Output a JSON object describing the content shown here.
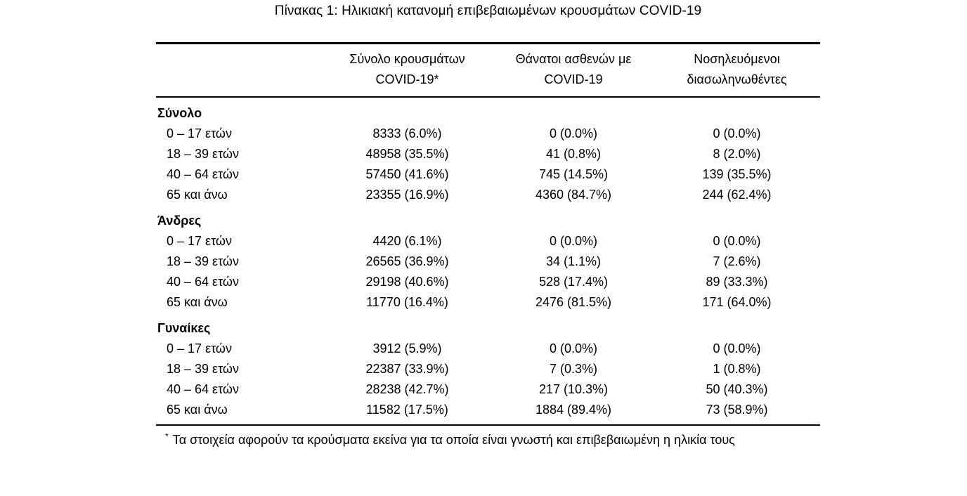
{
  "page": {
    "title": "Πίνακας 1: Ηλικιακή κατανομή επιβεβαιωμένων κρουσμάτων COVID-19"
  },
  "table": {
    "columns": [
      {
        "line1": "",
        "line2": ""
      },
      {
        "line1": "Σύνολο κρουσμάτων",
        "line2": "COVID-19*"
      },
      {
        "line1": "Θάνατοι ασθενών με",
        "line2": "COVID-19"
      },
      {
        "line1": "Νοσηλευόμενοι",
        "line2": "διασωληνωθέντες"
      }
    ],
    "groups": [
      {
        "label": "Σύνολο",
        "rows": [
          {
            "label": "0 – 17 ετών",
            "cases": "8333 (6.0%)",
            "deaths": "0 (0.0%)",
            "intubated": "0 (0.0%)"
          },
          {
            "label": "18 – 39 ετών",
            "cases": "48958 (35.5%)",
            "deaths": "41 (0.8%)",
            "intubated": "8 (2.0%)"
          },
          {
            "label": "40 – 64 ετών",
            "cases": "57450 (41.6%)",
            "deaths": "745 (14.5%)",
            "intubated": "139 (35.5%)"
          },
          {
            "label": "65 και άνω",
            "cases": "23355 (16.9%)",
            "deaths": "4360 (84.7%)",
            "intubated": "244 (62.4%)"
          }
        ]
      },
      {
        "label": "Άνδρες",
        "rows": [
          {
            "label": "0 – 17 ετών",
            "cases": "4420 (6.1%)",
            "deaths": "0 (0.0%)",
            "intubated": "0 (0.0%)"
          },
          {
            "label": "18 – 39 ετών",
            "cases": "26565 (36.9%)",
            "deaths": "34 (1.1%)",
            "intubated": "7 (2.6%)"
          },
          {
            "label": "40 – 64 ετών",
            "cases": "29198 (40.6%)",
            "deaths": "528 (17.4%)",
            "intubated": "89 (33.3%)"
          },
          {
            "label": "65 και άνω",
            "cases": "11770 (16.4%)",
            "deaths": "2476 (81.5%)",
            "intubated": "171 (64.0%)"
          }
        ]
      },
      {
        "label": "Γυναίκες",
        "rows": [
          {
            "label": "0 – 17 ετών",
            "cases": "3912 (5.9%)",
            "deaths": "0 (0.0%)",
            "intubated": "0 (0.0%)"
          },
          {
            "label": "18 – 39 ετών",
            "cases": "22387 (33.9%)",
            "deaths": "7 (0.3%)",
            "intubated": "1 (0.8%)"
          },
          {
            "label": "40 – 64 ετών",
            "cases": "28238 (42.7%)",
            "deaths": "217 (10.3%)",
            "intubated": "50 (40.3%)"
          },
          {
            "label": "65 και άνω",
            "cases": "11582 (17.5%)",
            "deaths": "1884 (89.4%)",
            "intubated": "73 (58.9%)"
          }
        ]
      }
    ],
    "footnote": {
      "marker": "*",
      "text": "Τα στοιχεία αφορούν τα κρούσματα εκείνα για τα οποία είναι γνωστή και επιβεβαιωμένη η ηλικία τους"
    }
  }
}
